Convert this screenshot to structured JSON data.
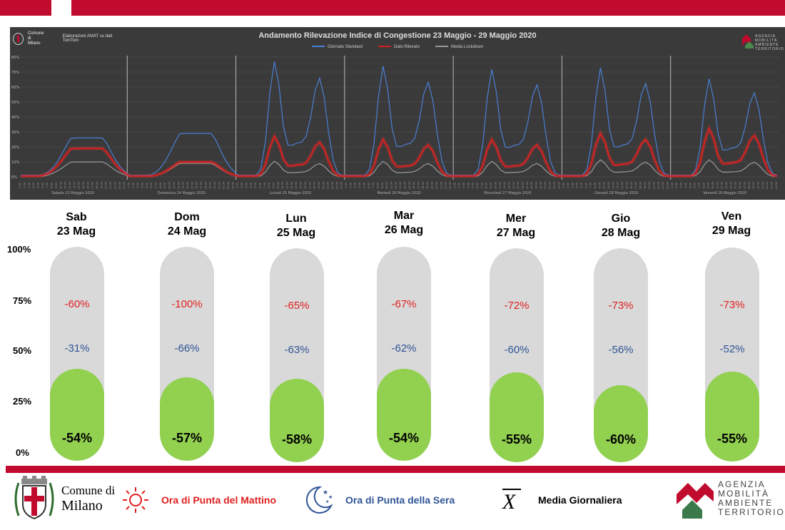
{
  "chart_panel": {
    "title": "Andamento Rilevazione Indice di Congestione 23 Maggio - 29 Maggio 2020",
    "source_note": "Elaborazioni AMAT su dati TomTom",
    "logo_line1": "Comune di",
    "logo_line2": "Milano",
    "legend": [
      {
        "name": "Giornate Standard",
        "color": "#4a7fd4"
      },
      {
        "name": "Dato Rilevato",
        "color": "#d42020"
      },
      {
        "name": "Media Lockdown",
        "color": "#9a9a9a"
      }
    ],
    "y_ticks": [
      "0%",
      "10%",
      "20%",
      "30%",
      "40%",
      "50%",
      "60%",
      "70%",
      "80%"
    ],
    "day_labels": [
      "Sabato 23 Maggio 2020",
      "Domenica 24 Maggio 2020",
      "Lunedì 25 Maggio 2020",
      "Martedì 26 Maggio 2020",
      "Mercoledì 27 Maggio 2020",
      "Giovedì 28 Maggio 2020",
      "Venerdì 29 Maggio 2020"
    ],
    "amat_lines": [
      "AGENZIA",
      "MOBILITÀ",
      "AMBIENTE",
      "TERRITORIO"
    ]
  },
  "chart_data": [
    {
      "type": "line",
      "title": "Andamento Rilevazione Indice di Congestione 23 Maggio - 29 Maggio 2020",
      "x": "hourly, 7 days × 24 hours (1:00 … 24:00)",
      "ylim": [
        0,
        80
      ],
      "grid": true,
      "legend_position": "top-center",
      "series": [
        {
          "name": "Giornate Standard",
          "peaks": [
            26,
            29,
            74,
            71,
            69,
            70,
            63
          ]
        },
        {
          "name": "Dato Rilevato",
          "peaks": [
            19,
            10,
            26,
            24,
            24,
            28,
            31
          ]
        },
        {
          "name": "Media Lockdown",
          "peaks": [
            10,
            9,
            10,
            10,
            10,
            11,
            11
          ]
        }
      ]
    },
    {
      "type": "bar",
      "categories": [
        "Sab 23 Mag",
        "Dom 24 Mag",
        "Lun 25 Mag",
        "Mar 26 Mag",
        "Mer 27 Mag",
        "Gio 28 Mag",
        "Ven 29 Mag"
      ],
      "ylim": [
        0,
        100
      ],
      "y_ticks": [
        "0%",
        "25%",
        "50%",
        "75%",
        "100%"
      ],
      "series": [
        {
          "name": "Ora di Punta del Mattino",
          "labels": [
            "-60%",
            "-100%",
            "-65%",
            "-67%",
            "-72%",
            "-73%",
            "-73%"
          ]
        },
        {
          "name": "Ora di Punta della Sera",
          "labels": [
            "-31%",
            "-66%",
            "-63%",
            "-62%",
            "-60%",
            "-56%",
            "-52%"
          ]
        },
        {
          "name": "Media Giornaliera",
          "labels": [
            "-54%",
            "-57%",
            "-58%",
            "-54%",
            "-55%",
            "-60%",
            "-55%"
          ],
          "fill_percent": [
            43,
            39,
            39,
            43,
            42,
            36,
            42
          ]
        }
      ]
    }
  ],
  "days": [
    {
      "dow": "Sab",
      "date": "23 Mag",
      "morning": "-60%",
      "evening": "-31%",
      "daily": "-54%",
      "fill": 43
    },
    {
      "dow": "Dom",
      "date": "24 Mag",
      "morning": "-100%",
      "evening": "-66%",
      "daily": "-57%",
      "fill": 39
    },
    {
      "dow": "Lun",
      "date": "25 Mag",
      "morning": "-65%",
      "evening": "-63%",
      "daily": "-58%",
      "fill": 39
    },
    {
      "dow": "Mar",
      "date": "26 Mag",
      "morning": "-67%",
      "evening": "-62%",
      "daily": "-54%",
      "fill": 43
    },
    {
      "dow": "Mer",
      "date": "27 Mag",
      "morning": "-72%",
      "evening": "-60%",
      "daily": "-55%",
      "fill": 42
    },
    {
      "dow": "Gio",
      "date": "28 Mag",
      "morning": "-73%",
      "evening": "-56%",
      "daily": "-60%",
      "fill": 36
    },
    {
      "dow": "Ven",
      "date": "29 Mag",
      "morning": "-73%",
      "evening": "-52%",
      "daily": "-55%",
      "fill": 42
    }
  ],
  "gauge_y_ticks": [
    "100%",
    "75%",
    "50%",
    "25%",
    "0%"
  ],
  "footer": {
    "comune_line1": "Comune di",
    "comune_line2": "Milano",
    "morning_label": "Ora di Punta del Mattino",
    "evening_label": "Ora di Punta della Sera",
    "xbar_symbol": "X",
    "daily_label": "Media Giornaliera",
    "amat_lines": [
      "AGENZIA",
      "MOBILITÀ",
      "AMBIENTE",
      "TERRITORIO"
    ],
    "morning_color": "#e02020",
    "evening_color": "#2f5496"
  }
}
